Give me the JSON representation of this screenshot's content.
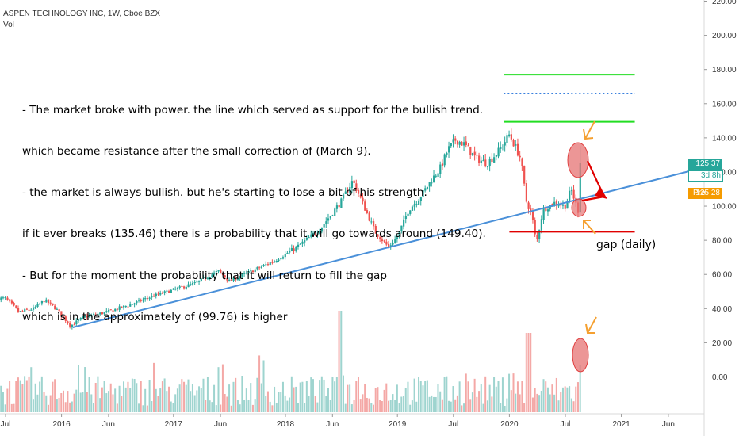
{
  "header": {
    "title": "ASPEN TECHNOLOGY INC, 1W, Cboe BZX",
    "volume_label": "Vol"
  },
  "annotations": {
    "lines": [
      "- The market broke with power. the line which served as support for the bullish trend.",
      "which became resistance after the small correction of (March 9).",
      "- the market is always bullish. but he's starting to lose a bit of his strength.",
      "if it ever breaks (135.46) there is a probability that it will go towards around (149.40).",
      "- But for the moment the probability that it will return to fill the gap",
      "which is in the approximately of (99.76) is higher"
    ],
    "gap_label": "gap (daily)"
  },
  "price_tags": {
    "last": "125.37",
    "countdown": "3d 8h",
    "pre_label": "Pre",
    "pre_value": "125.28"
  },
  "colors": {
    "up": "#26a69a",
    "down": "#ef5350",
    "trend": "#4a90d9",
    "green_level": "#22dd22",
    "red_level": "#e00000",
    "blue_dotted": "#1e6fd9",
    "ellipse": "#e57373",
    "arrow_orange": "#f5a030",
    "last_tag": "#26a69a",
    "pre_tag": "#f59b00"
  },
  "chart_data": {
    "type": "candlestick",
    "y_axis": {
      "ticks": [
        0,
        20,
        40,
        60,
        80,
        100,
        120,
        140,
        160,
        180,
        200,
        220
      ],
      "tick_labels": [
        "0.00",
        "20.00",
        "40.00",
        "60.00",
        "80.00",
        "100.00",
        "120.00",
        "140.00",
        "160.00",
        "180.00",
        "200.00",
        "220.00"
      ]
    },
    "x_axis": {
      "tick_labels": [
        {
          "label": "Jul",
          "t": 2015.5
        },
        {
          "label": "2016",
          "t": 2016.0
        },
        {
          "label": "Jun",
          "t": 2016.42
        },
        {
          "label": "2017",
          "t": 2017.0
        },
        {
          "label": "Jun",
          "t": 2017.42
        },
        {
          "label": "2018",
          "t": 2018.0
        },
        {
          "label": "Jun",
          "t": 2018.42
        },
        {
          "label": "2019",
          "t": 2019.0
        },
        {
          "label": "Jul",
          "t": 2019.5
        },
        {
          "label": "2020",
          "t": 2020.0
        },
        {
          "label": "Jul",
          "t": 2020.5
        },
        {
          "label": "2021",
          "t": 2021.0
        },
        {
          "label": "Jun",
          "t": 2021.42
        }
      ]
    },
    "price_path": [
      [
        2015.5,
        46
      ],
      [
        2015.62,
        38
      ],
      [
        2015.75,
        40
      ],
      [
        2015.85,
        45
      ],
      [
        2015.95,
        40
      ],
      [
        2016.08,
        30
      ],
      [
        2016.2,
        35
      ],
      [
        2016.4,
        38
      ],
      [
        2016.6,
        42
      ],
      [
        2016.8,
        47
      ],
      [
        2017.0,
        51
      ],
      [
        2017.2,
        55
      ],
      [
        2017.4,
        62
      ],
      [
        2017.5,
        56
      ],
      [
        2017.7,
        62
      ],
      [
        2017.9,
        68
      ],
      [
        2018.1,
        76
      ],
      [
        2018.3,
        86
      ],
      [
        2018.5,
        103
      ],
      [
        2018.6,
        115
      ],
      [
        2018.7,
        100
      ],
      [
        2018.8,
        85
      ],
      [
        2018.92,
        76
      ],
      [
        2019.0,
        82
      ],
      [
        2019.1,
        98
      ],
      [
        2019.2,
        105
      ],
      [
        2019.3,
        115
      ],
      [
        2019.38,
        122
      ],
      [
        2019.45,
        133
      ],
      [
        2019.52,
        139
      ],
      [
        2019.6,
        136
      ],
      [
        2019.7,
        128
      ],
      [
        2019.8,
        125
      ],
      [
        2019.9,
        132
      ],
      [
        2020.0,
        142
      ],
      [
        2020.1,
        128
      ],
      [
        2020.15,
        103
      ],
      [
        2020.2,
        95
      ],
      [
        2020.24,
        78
      ],
      [
        2020.3,
        98
      ],
      [
        2020.4,
        102
      ],
      [
        2020.5,
        100
      ],
      [
        2020.55,
        110
      ],
      [
        2020.6,
        100
      ],
      [
        2020.62,
        96
      ],
      [
        2020.64,
        125.37
      ]
    ],
    "last_price": 125.37,
    "pre_market": 125.28,
    "levels": [
      {
        "kind": "resistance",
        "price": 177,
        "t0": 2019.95,
        "t1": 2021.12
      },
      {
        "kind": "dotted",
        "price": 166,
        "t0": 2019.95,
        "t1": 2021.12
      },
      {
        "kind": "resistance",
        "price": 149.4,
        "t0": 2019.95,
        "t1": 2021.12
      },
      {
        "kind": "support",
        "price": 85,
        "t0": 2020.0,
        "t1": 2021.12
      }
    ],
    "dashed_price_line": 125.37,
    "trendline": {
      "t0": 2016.1,
      "p0": 29,
      "t1": 2021.7,
      "p1": 122
    },
    "volume_scale": "relative"
  }
}
